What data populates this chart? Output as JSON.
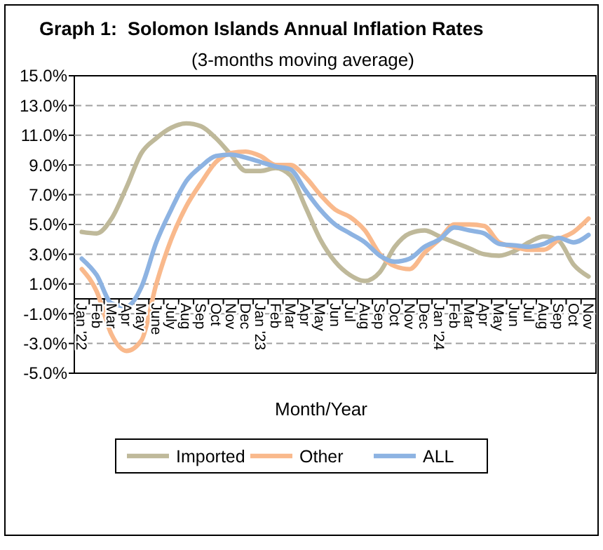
{
  "chart_data": {
    "type": "line",
    "title": "Graph 1:  Solomon Islands Annual Inflation Rates",
    "subtitle": "(3-months moving average)",
    "xlabel": "Month/Year",
    "categories": [
      "Jan '22",
      "Feb",
      "Mar",
      "Apr",
      "May",
      "June",
      "July",
      "Aug",
      "Sep",
      "Oct",
      "Nov",
      "Dec",
      "Jan '23",
      "Feb",
      "Mar",
      "Apr",
      "May",
      "Jun",
      "Jul",
      "Aug",
      "Sep",
      "Oct",
      "Nov",
      "Dec",
      "Jan '24",
      "Feb",
      "Mar",
      "Apr",
      "May",
      "Jun",
      "Jul",
      "Aug",
      "Sep",
      "Oct",
      "Nov"
    ],
    "series": [
      {
        "name": "Imported",
        "color": "#bfb99a",
        "values": [
          4.5,
          4.4,
          5.4,
          7.5,
          9.8,
          10.8,
          11.5,
          11.8,
          11.6,
          10.8,
          9.7,
          8.6,
          8.6,
          8.8,
          8.3,
          6.2,
          4.0,
          2.5,
          1.6,
          1.2,
          1.8,
          3.5,
          4.4,
          4.6,
          4.2,
          3.8,
          3.4,
          3.0,
          2.9,
          3.2,
          3.8,
          4.2,
          3.9,
          2.3,
          1.5
        ]
      },
      {
        "name": "Other",
        "color": "#f9b98c",
        "values": [
          2.0,
          0.5,
          -2.4,
          -3.5,
          -2.8,
          1.0,
          4.0,
          6.2,
          7.8,
          9.2,
          9.8,
          9.9,
          9.6,
          9.0,
          9.0,
          8.2,
          7.0,
          6.0,
          5.5,
          4.6,
          3.0,
          2.2,
          2.0,
          3.1,
          4.0,
          5.0,
          5.0,
          4.9,
          3.8,
          3.5,
          3.3,
          3.3,
          4.0,
          4.5,
          5.4
        ]
      },
      {
        "name": "ALL",
        "color": "#8db3e2",
        "values": [
          2.7,
          1.6,
          -0.3,
          -0.5,
          0.8,
          3.8,
          6.0,
          7.9,
          8.9,
          9.6,
          9.7,
          9.5,
          9.2,
          8.9,
          8.7,
          7.3,
          6.0,
          5.0,
          4.4,
          3.8,
          2.9,
          2.5,
          2.7,
          3.5,
          4.0,
          4.8,
          4.6,
          4.4,
          3.7,
          3.6,
          3.5,
          3.7,
          4.1,
          3.8,
          4.3
        ]
      }
    ],
    "ylim": [
      -5,
      15
    ],
    "yticks": [
      {
        "value": -5,
        "label": "-5.0%"
      },
      {
        "value": -3,
        "label": "-3.0%"
      },
      {
        "value": -1,
        "label": "-1.0%"
      },
      {
        "value": 1,
        "label": "1.0%"
      },
      {
        "value": 3,
        "label": "3.0%"
      },
      {
        "value": 5,
        "label": "5.0%"
      },
      {
        "value": 7,
        "label": "7.0%"
      },
      {
        "value": 9,
        "label": "9.0%"
      },
      {
        "value": 11,
        "label": "11.0%"
      },
      {
        "value": 13,
        "label": "13.0%"
      },
      {
        "value": 15,
        "label": "15.0%"
      }
    ],
    "grid": "y",
    "legend": "bottom",
    "marker": "none",
    "line_style": "solid"
  }
}
